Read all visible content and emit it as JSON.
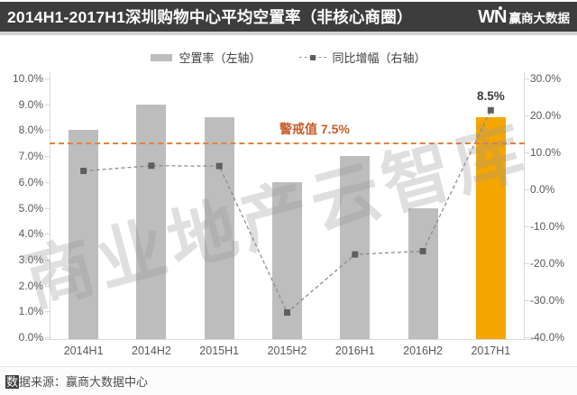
{
  "header": {
    "title": "2014H1-2017H1深圳购物中心平均空置率（非核心商圈）",
    "logo": {
      "w": "W",
      "n": "N",
      "label": "赢商大数据"
    }
  },
  "legend": [
    {
      "label": "空置率（左轴）"
    },
    {
      "label": "同比增幅（右轴）"
    }
  ],
  "watermark": "商业地产云智库",
  "footer": {
    "highlight_char": "数",
    "rest": "据来源：赢商大数据中心"
  },
  "chart_data": {
    "type": "bar",
    "title": "2014H1-2017H1深圳购物中心平均空置率（非核心商圈）",
    "categories": [
      "2014H1",
      "2014H2",
      "2015H1",
      "2015H2",
      "2016H1",
      "2016H2",
      "2017H1"
    ],
    "series": [
      {
        "name": "空置率（左轴）",
        "type": "bar",
        "axis": "left",
        "values": [
          8.0,
          9.0,
          8.5,
          6.0,
          7.0,
          5.0,
          8.5
        ]
      },
      {
        "name": "同比增幅（右轴）",
        "type": "line",
        "axis": "right",
        "values": [
          5.0,
          6.4,
          6.3,
          -33.3,
          -17.6,
          -16.7,
          21.4
        ]
      }
    ],
    "left_axis": {
      "ticks": [
        "0.0%",
        "1.0%",
        "2.0%",
        "3.0%",
        "4.0%",
        "5.0%",
        "6.0%",
        "7.0%",
        "8.0%",
        "9.0%",
        "10.0%"
      ],
      "lim": [
        0,
        10
      ]
    },
    "right_axis": {
      "ticks": [
        "-40.0%",
        "-30.0%",
        "-20.0%",
        "-10.0%",
        "0.0%",
        "10.0%",
        "20.0%",
        "30.0%"
      ],
      "lim": [
        -40,
        30
      ]
    },
    "warning": {
      "label": "警戒值 7.5%",
      "value": 7.5
    },
    "highlight_index": 6,
    "annotation": {
      "index": 6,
      "text": "8.5%"
    },
    "grid": false,
    "legend_position": "top",
    "colors": {
      "bar": "#BDBDBD",
      "highlight": "#F6A600",
      "line": "#8C8C8C",
      "marker": "#5F5F5F",
      "warning": "#E2813E",
      "warning_text": "#C75B28",
      "titlebar": "#3D3D3D"
    }
  }
}
